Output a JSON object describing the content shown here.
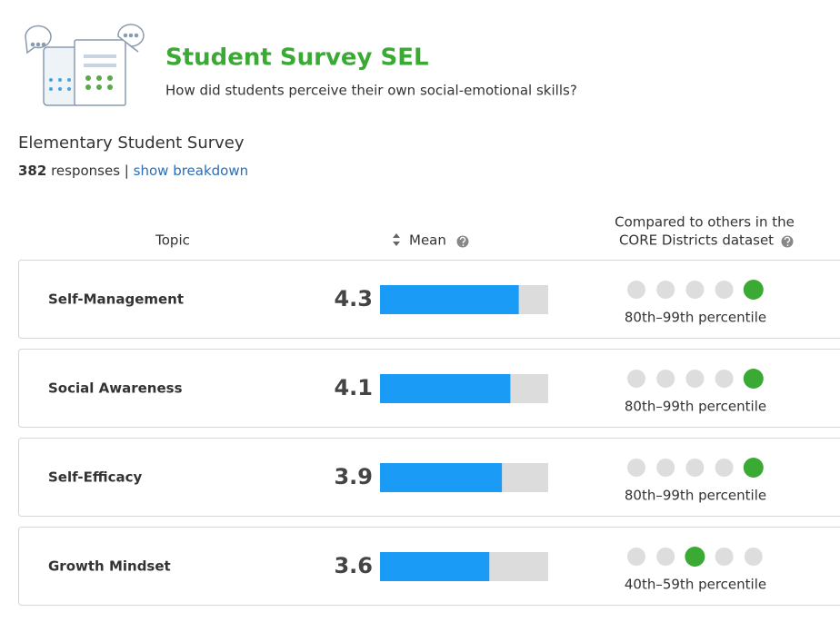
{
  "header": {
    "title": "Student Survey SEL",
    "subtitle": "How did students perceive their own social-emotional skills?"
  },
  "survey": {
    "name": "Elementary Student Survey",
    "responses": 382,
    "responses_label": "responses |",
    "link": "show breakdown"
  },
  "table": {
    "columns": {
      "topic": "Topic",
      "mean": "Mean",
      "compare": [
        "Compared to others in the",
        "CORE Districts dataset"
      ]
    },
    "mean_range": [
      1,
      5
    ],
    "bar_color": "#1a9bf5",
    "dot_color": "#3aaa35",
    "rank_count": 5,
    "rows": [
      {
        "topic": "Self-Management",
        "mean": 4.3,
        "rank": 4,
        "percentile": "80th–99th percentile"
      },
      {
        "topic": "Social Awareness",
        "mean": 4.1,
        "rank": 4,
        "percentile": "80th–99th percentile"
      },
      {
        "topic": "Self-Efficacy",
        "mean": 3.9,
        "rank": 4,
        "percentile": "80th–99th percentile"
      },
      {
        "topic": "Growth Mindset",
        "mean": 3.6,
        "rank": 2,
        "percentile": "40th–59th percentile"
      }
    ]
  }
}
